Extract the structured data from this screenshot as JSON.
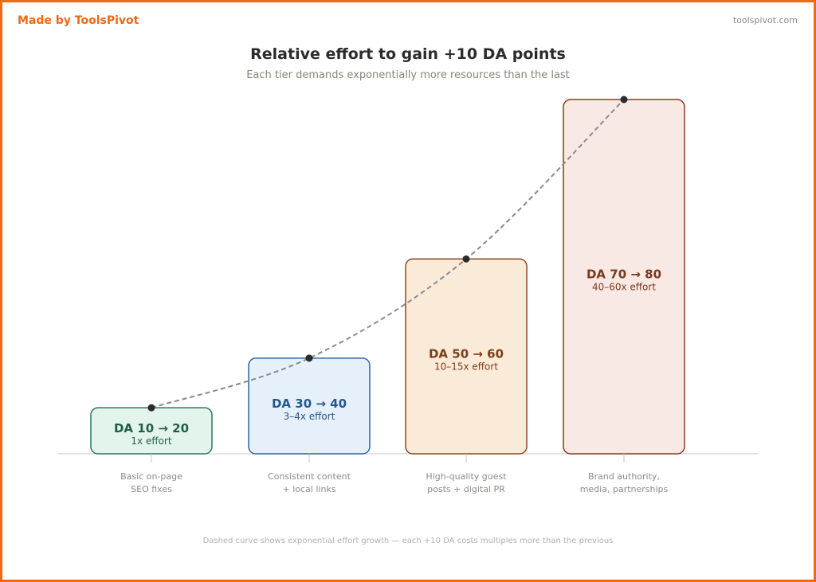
{
  "header": {
    "brand": "Made by ToolsPivot",
    "site": "toolspivot.com"
  },
  "colors": {
    "frame": "#f06a12",
    "brand": "#ea6a16"
  },
  "chart_data": {
    "type": "bar",
    "title": "Relative effort to gain +10 DA points",
    "subtitle": "Each tier demands exponentially more resources than the last",
    "categories": [
      "Basic on-page\nSEO fixes",
      "Consistent content\n+ local links",
      "High-quality guest\nposts + digital PR",
      "Brand authority,\nmedia, partnerships"
    ],
    "bars": [
      {
        "label": "DA 10 → 20",
        "effort": "1x effort",
        "relative_height": 0.13,
        "fill": "#e3f4ec",
        "stroke": "#2a7a5a",
        "text": "#1f5f47"
      },
      {
        "label": "DA 30 → 40",
        "effort": "3–4x effort",
        "relative_height": 0.27,
        "fill": "#e6f0fa",
        "stroke": "#2e66a8",
        "text": "#24578f"
      },
      {
        "label": "DA 50 → 60",
        "effort": "10–15x effort",
        "relative_height": 0.55,
        "fill": "#faebd9",
        "stroke": "#8a4a20",
        "text": "#7a3e18"
      },
      {
        "label": "DA 70 → 80",
        "effort": "40–60x effort",
        "relative_height": 1.0,
        "fill": "#f9e9e5",
        "stroke": "#8a3a1a",
        "text": "#7a3a1a"
      }
    ],
    "curve": "dashed",
    "grid": false,
    "footnote": "Dashed curve shows exponential effort growth — each +10 DA costs multiples more than the previous"
  }
}
